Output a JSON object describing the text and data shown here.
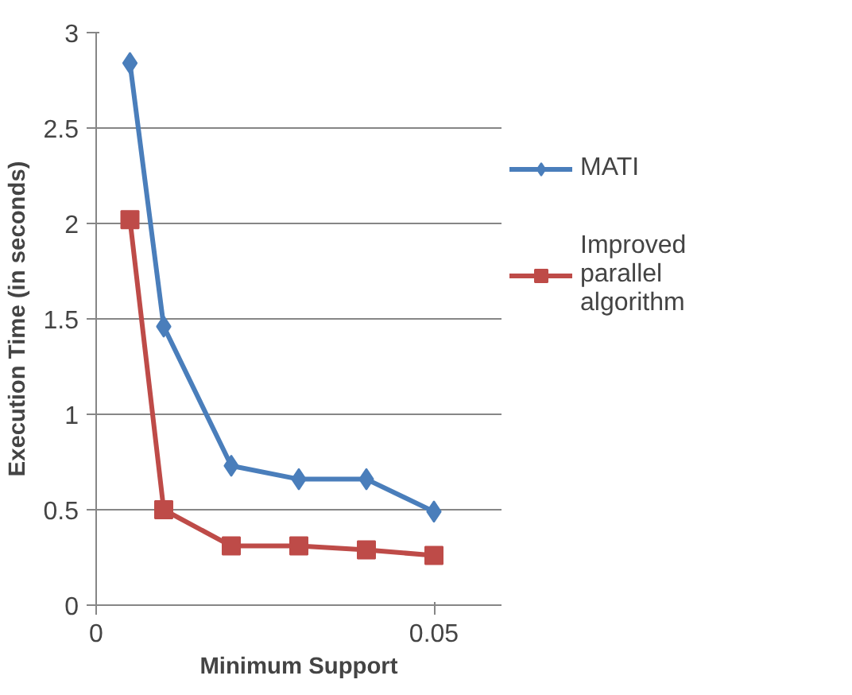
{
  "chart_data": {
    "type": "line",
    "xlabel": "Minimum Support",
    "ylabel": "Execution Time (in seconds)",
    "x": [
      0.005,
      0.01,
      0.02,
      0.03,
      0.04,
      0.05
    ],
    "series": [
      {
        "name": "MATI",
        "color": "#4a7ebb",
        "values": [
          2.84,
          1.46,
          0.73,
          0.66,
          0.66,
          0.49
        ],
        "marker": "diamond"
      },
      {
        "name": "Improved parallel algorithm",
        "color": "#be4b48",
        "values": [
          2.02,
          0.5,
          0.31,
          0.31,
          0.29,
          0.26
        ],
        "marker": "square"
      }
    ],
    "xlim": [
      0,
      0.06
    ],
    "xticks": [
      0,
      0.05
    ],
    "ylim": [
      0,
      3
    ],
    "yticks": [
      0,
      0.5,
      1,
      1.5,
      2,
      2.5,
      3
    ],
    "grid": "y",
    "legend": "right"
  }
}
